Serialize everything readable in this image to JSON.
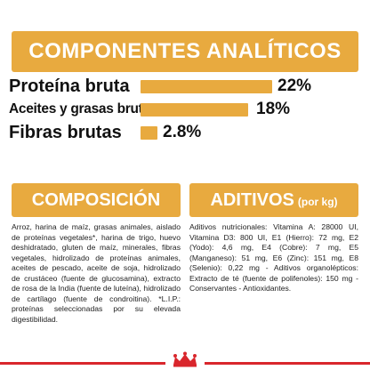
{
  "analytics": {
    "title": "COMPONENTES ANALÍTICOS",
    "items": [
      {
        "label": "Proteína bruta",
        "value": "22%",
        "fraction": 1.0
      },
      {
        "label": "Aceites y grasas brutos",
        "value": "18%",
        "fraction": 0.82
      },
      {
        "label": "Fibras brutas",
        "value": "2.8%",
        "fraction": 0.13
      }
    ]
  },
  "composition": {
    "title": "COMPOSICIÓN",
    "text": "Arroz, harina de maíz, grasas animales, aislado de proteínas vegetales*, harina de trigo, huevo deshidratado, gluten de maíz, minerales, fibras vegetales, hidrolizado de proteínas animales, aceites de pescado, aceite de soja, hidrolizado de crustáceo (fuente de glucosamina), extracto de rosa de la India (fuente de luteína), hidrolizado de cartílago (fuente de condroitina). *L.I.P.: proteínas seleccionadas por su elevada digestibilidad."
  },
  "additives": {
    "title": "ADITIVOS",
    "title_suffix": "(por kg)",
    "text": "Aditivos nutricionales: Vitamina A: 28000 UI, Vitamina D3: 800 UI, E1 (Hierro): 72 mg, E2 (Yodo): 4,6 mg, E4 (Cobre): 7 mg, E5 (Manganeso): 51 mg, E6 (Zinc): 151 mg, E8 (Selenio): 0,22 mg - Aditivos organolépticos: Extracto de té (fuente de polifenoles): 150 mg - Conservantes - Antioxidantes."
  },
  "colors": {
    "accent": "#e8aa3f",
    "brand_red": "#d9262c",
    "text": "#111111"
  },
  "logo": {
    "icon": "royal-canin-crown-icon"
  }
}
